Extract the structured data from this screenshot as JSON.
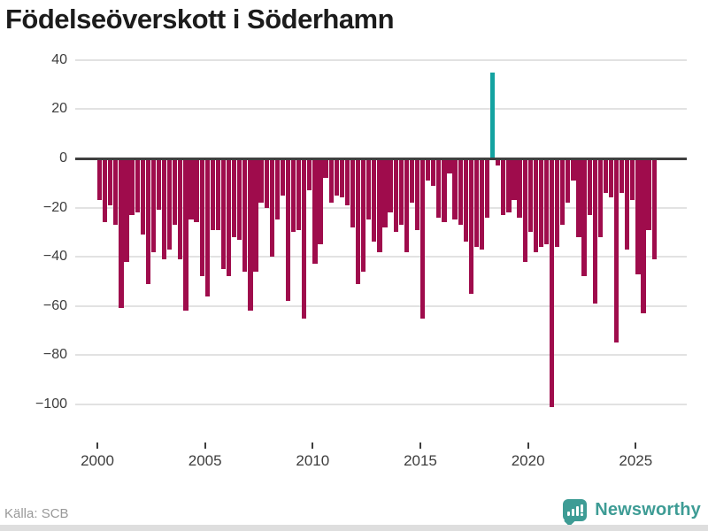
{
  "title": "Födelseöverskott i Söderhamn",
  "source": "Källa: SCB",
  "brand": {
    "name": "Newsworthy"
  },
  "colors": {
    "bar": "#9f0c4c",
    "highlight": "#14a3a1",
    "grid": "#e2e2e2",
    "zero_line": "#3f3f3f",
    "axis_text": "#3d3d3d",
    "title_text": "#1c1c1c",
    "source_text": "#999999",
    "brand_teal": "#3e9c95"
  },
  "chart_data": {
    "type": "bar",
    "title": "Födelseöverskott i Söderhamn",
    "xlabel": "",
    "ylabel": "",
    "ylim": [
      -105,
      42
    ],
    "grid": true,
    "frequency": "quarterly",
    "start_period": "2000-Q1",
    "end_period": "2025-Q4",
    "x_ticks": [
      "2000",
      "2005",
      "2010",
      "2015",
      "2020",
      "2025"
    ],
    "y_ticks": [
      40,
      20,
      0,
      -20,
      -40,
      -60,
      -80,
      -100
    ],
    "y_tick_labels": [
      "40",
      "20",
      "0",
      "−20",
      "−40",
      "−60",
      "−80",
      "−100"
    ],
    "highlight_index": 73,
    "highlight_value": 35,
    "min_value": -101,
    "values": [
      -17,
      -26,
      -19,
      -27,
      -61,
      -42,
      -23,
      -22,
      -31,
      -51,
      -38,
      -21,
      -41,
      -37,
      -27,
      -41,
      -62,
      -25,
      -26,
      -48,
      -56,
      -29,
      -29,
      -45,
      -48,
      -32,
      -33,
      -46,
      -62,
      -46,
      -18,
      -20,
      -40,
      -25,
      -15,
      -58,
      -30,
      -29,
      -65,
      -13,
      -43,
      -35,
      -8,
      -18,
      -15,
      -16,
      -19,
      -28,
      -51,
      -46,
      -25,
      -34,
      -38,
      -28,
      -22,
      -30,
      -27,
      -38,
      -18,
      -29,
      -65,
      -9,
      -11,
      -24,
      -26,
      -6,
      -25,
      -27,
      -34,
      -55,
      -36,
      -37,
      -24,
      35,
      -3,
      -23,
      -22,
      -17,
      -24,
      -42,
      -30,
      -38,
      -36,
      -35,
      -101,
      -36,
      -27,
      -18,
      -9,
      -32,
      -48,
      -23,
      -59,
      -32,
      -14,
      -16,
      -75,
      -14,
      -37,
      -17,
      -47,
      -63,
      -29,
      -41
    ]
  }
}
